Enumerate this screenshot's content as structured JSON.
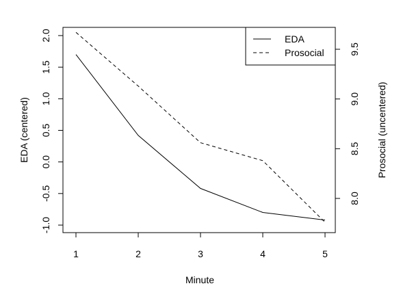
{
  "chart_data": {
    "type": "line",
    "xlabel": "Minute",
    "ylabel_left": "EDA (centered)",
    "ylabel_right": "Prosocial (uncentered)",
    "x": [
      1,
      2,
      3,
      4,
      5
    ],
    "x_ticks": [
      "1",
      "2",
      "3",
      "4",
      "5"
    ],
    "y_left_ticks": [
      "-1.0",
      "-0.5",
      "0.0",
      "0.5",
      "1.0",
      "1.5",
      "2.0"
    ],
    "y_right_ticks": [
      "8.0",
      "8.5",
      "9.0",
      "9.5"
    ],
    "y_left_range": [
      -1.12,
      2.1
    ],
    "y_right_range": [
      7.72,
      9.73
    ],
    "series": [
      {
        "name": "EDA",
        "axis": "left",
        "line_style": "solid",
        "values": [
          1.7,
          0.42,
          -0.42,
          -0.8,
          -0.92
        ]
      },
      {
        "name": "Prosocial",
        "axis": "right",
        "line_style": "dashed",
        "values": [
          9.67,
          9.13,
          8.56,
          8.38,
          7.76
        ]
      }
    ],
    "legend": {
      "position": "top-right",
      "entries": [
        "EDA",
        "Prosocial"
      ]
    },
    "grid": false
  }
}
